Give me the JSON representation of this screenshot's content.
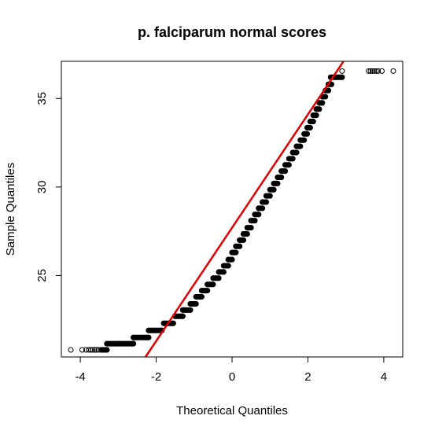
{
  "chart_data": {
    "type": "scatter",
    "title": "p. falciparum normal scores",
    "xlabel": "Theoretical Quantiles",
    "ylabel": "Sample Quantiles",
    "xlim": [
      -4.5,
      4.5
    ],
    "ylim": [
      20.4,
      37.1
    ],
    "x_ticks": [
      "-4",
      "-2",
      "0",
      "2",
      "4"
    ],
    "y_ticks": [
      "25",
      "30",
      "35"
    ],
    "grid": false,
    "legend": "none",
    "reference_line": {
      "intercept": 27.7,
      "slope": 3.2,
      "color": "#e00000"
    },
    "point_color": "#000000",
    "series": [
      {
        "points": [
          [
            -4.25,
            20.8
          ],
          [
            -3.95,
            20.8
          ],
          [
            -3.85,
            20.8
          ],
          [
            -3.78,
            20.8
          ],
          [
            -3.72,
            20.8
          ],
          [
            -3.67,
            20.8
          ],
          [
            -3.62,
            20.8
          ],
          [
            -3.57,
            20.8
          ],
          [
            -3.52,
            20.8
          ],
          [
            -3.45,
            20.8
          ],
          [
            -3.38,
            20.8
          ],
          [
            -3.3,
            20.8
          ],
          [
            -3.3,
            21.15
          ],
          [
            -3.0,
            21.15
          ],
          [
            -2.6,
            21.15
          ],
          [
            -2.6,
            21.5
          ],
          [
            -2.2,
            21.5
          ],
          [
            -2.2,
            21.9
          ],
          [
            -1.85,
            21.9
          ],
          [
            -1.8,
            22.3
          ],
          [
            -1.55,
            22.3
          ],
          [
            -1.5,
            22.7
          ],
          [
            -1.3,
            22.7
          ],
          [
            -1.3,
            23.05
          ],
          [
            -1.1,
            23.05
          ],
          [
            -1.1,
            23.4
          ],
          [
            -0.95,
            23.4
          ],
          [
            -0.95,
            23.8
          ],
          [
            -0.8,
            23.8
          ],
          [
            -0.8,
            24.15
          ],
          [
            -0.65,
            24.15
          ],
          [
            -0.65,
            24.5
          ],
          [
            -0.5,
            24.5
          ],
          [
            -0.5,
            24.85
          ],
          [
            -0.35,
            24.85
          ],
          [
            -0.35,
            25.2
          ],
          [
            -0.22,
            25.2
          ],
          [
            -0.22,
            25.55
          ],
          [
            -0.1,
            25.55
          ],
          [
            -0.1,
            25.9
          ],
          [
            0.0,
            25.9
          ],
          [
            0.0,
            26.3
          ],
          [
            0.1,
            26.3
          ],
          [
            0.1,
            26.65
          ],
          [
            0.2,
            26.65
          ],
          [
            0.2,
            27.0
          ],
          [
            0.3,
            27.0
          ],
          [
            0.3,
            27.35
          ],
          [
            0.4,
            27.35
          ],
          [
            0.4,
            27.7
          ],
          [
            0.5,
            27.7
          ],
          [
            0.5,
            28.1
          ],
          [
            0.6,
            28.1
          ],
          [
            0.6,
            28.45
          ],
          [
            0.7,
            28.45
          ],
          [
            0.7,
            28.8
          ],
          [
            0.8,
            28.8
          ],
          [
            0.8,
            29.15
          ],
          [
            0.9,
            29.15
          ],
          [
            0.9,
            29.5
          ],
          [
            1.0,
            29.5
          ],
          [
            1.0,
            29.85
          ],
          [
            1.1,
            29.85
          ],
          [
            1.1,
            30.2
          ],
          [
            1.2,
            30.2
          ],
          [
            1.2,
            30.55
          ],
          [
            1.3,
            30.55
          ],
          [
            1.3,
            30.9
          ],
          [
            1.4,
            30.9
          ],
          [
            1.4,
            31.25
          ],
          [
            1.5,
            31.25
          ],
          [
            1.5,
            31.6
          ],
          [
            1.6,
            31.6
          ],
          [
            1.6,
            31.95
          ],
          [
            1.7,
            31.95
          ],
          [
            1.7,
            32.3
          ],
          [
            1.8,
            32.3
          ],
          [
            1.8,
            32.65
          ],
          [
            1.9,
            32.65
          ],
          [
            1.9,
            33.0
          ],
          [
            1.98,
            33.0
          ],
          [
            1.98,
            33.35
          ],
          [
            2.06,
            33.35
          ],
          [
            2.06,
            33.7
          ],
          [
            2.14,
            33.7
          ],
          [
            2.14,
            34.05
          ],
          [
            2.22,
            34.05
          ],
          [
            2.22,
            34.4
          ],
          [
            2.3,
            34.4
          ],
          [
            2.3,
            34.75
          ],
          [
            2.38,
            34.75
          ],
          [
            2.38,
            35.1
          ],
          [
            2.46,
            35.1
          ],
          [
            2.46,
            35.45
          ],
          [
            2.54,
            35.45
          ],
          [
            2.54,
            35.8
          ],
          [
            2.62,
            35.8
          ],
          [
            2.6,
            36.2
          ],
          [
            2.9,
            36.2
          ],
          [
            2.9,
            36.55
          ],
          [
            3.6,
            36.55
          ],
          [
            3.65,
            36.55
          ],
          [
            3.7,
            36.55
          ],
          [
            3.75,
            36.55
          ],
          [
            3.8,
            36.55
          ],
          [
            3.85,
            36.55
          ],
          [
            3.95,
            36.55
          ],
          [
            4.25,
            36.55
          ]
        ]
      }
    ]
  }
}
